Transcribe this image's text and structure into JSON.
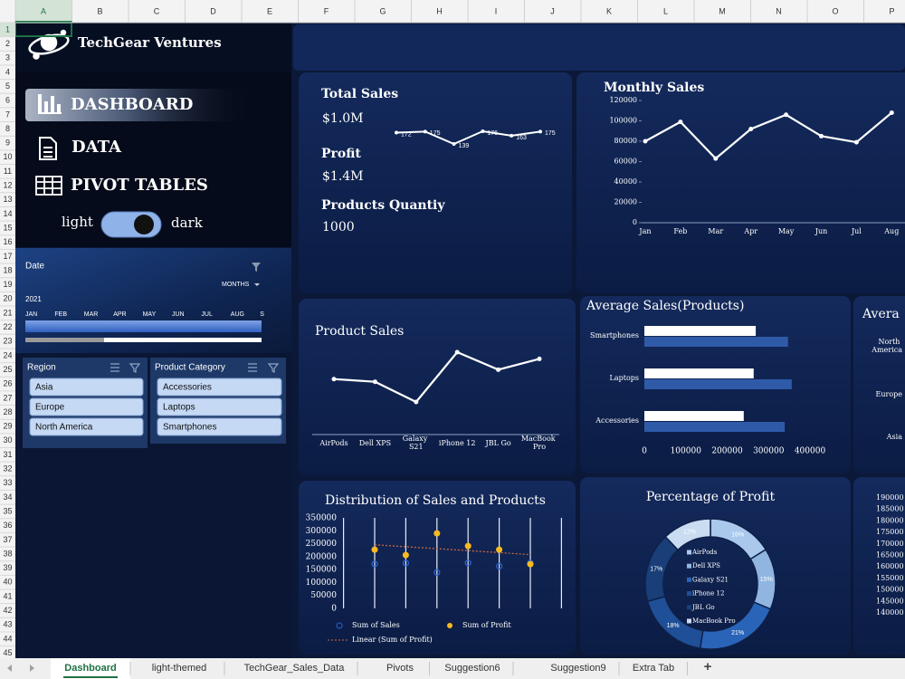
{
  "spreadsheet": {
    "columns": [
      "A",
      "B",
      "C",
      "D",
      "E",
      "F",
      "G",
      "H",
      "I",
      "J",
      "K",
      "L",
      "M",
      "N",
      "O",
      "P"
    ],
    "rows": [
      1,
      2,
      3,
      4,
      5,
      6,
      7,
      8,
      9,
      10,
      11,
      12,
      13,
      14,
      15,
      16,
      17,
      18,
      19,
      20,
      21,
      22,
      23,
      24,
      25,
      26,
      27,
      28,
      29,
      30,
      31,
      32,
      33,
      34,
      35,
      36,
      37,
      38,
      39,
      40,
      41,
      42,
      43,
      44,
      45
    ],
    "tabs": [
      "Dashboard",
      "light-themed",
      "TechGear_Sales_Data",
      "Pivots",
      "Suggestion6",
      "Suggestion9",
      "Extra Tab"
    ],
    "new_tab": "+"
  },
  "sidebar": {
    "company": "TechGear Ventures",
    "nav": [
      "DASHBOARD",
      "DATA",
      "PIVOT TABLES"
    ],
    "toggle": {
      "left": "light",
      "right": "dark"
    }
  },
  "timeline": {
    "title": "Date",
    "level": "MONTHS",
    "year": "2021",
    "months": [
      "JAN",
      "FEB",
      "MAR",
      "APR",
      "MAY",
      "JUN",
      "JUL",
      "AUG",
      "S"
    ]
  },
  "slicers": [
    {
      "title": "Region",
      "items": [
        "Asia",
        "Europe",
        "North America"
      ]
    },
    {
      "title": "Product Category",
      "items": [
        "Accessories",
        "Laptops",
        "Smartphones"
      ]
    }
  ],
  "kpis": [
    {
      "label": "Total Sales",
      "value": "$1.0M"
    },
    {
      "label": "Profit",
      "value": "$1.4M"
    },
    {
      "label": "Products Quantiy",
      "value": "1000"
    }
  ],
  "chart_data": [
    {
      "type": "sparkline",
      "values": [
        172,
        175,
        139,
        176,
        163,
        175
      ],
      "color": "#ffffff",
      "data_labels": true
    },
    {
      "type": "line",
      "title": "Monthly Sales",
      "categories": [
        "Jan",
        "Feb",
        "Mar",
        "Apr",
        "May",
        "Jun",
        "Jul",
        "Aug"
      ],
      "values": [
        80000,
        99000,
        63000,
        92000,
        106000,
        85000,
        79000,
        108000
      ],
      "color": "#ffffff",
      "ylim": [
        0,
        120000
      ],
      "yticks": [
        0,
        20000,
        40000,
        60000,
        80000,
        100000,
        120000
      ]
    },
    {
      "type": "line",
      "title": "Product Sales",
      "categories": [
        "AirPods",
        "Dell XPS",
        "Galaxy S21",
        "iPhone 12",
        "JBL Go",
        "MacBook Pro"
      ],
      "values": [
        156,
        154,
        139,
        176,
        163,
        171
      ],
      "color": "#ffffff"
    },
    {
      "type": "hbar",
      "title": "Average Sales(Products)",
      "categories": [
        "Smartphones",
        "Laptops",
        "Accessories"
      ],
      "series": [
        {
          "color": "#ffffff",
          "values": [
            269000,
            264000,
            240000
          ]
        },
        {
          "color": "#2f5aa8",
          "values": [
            347000,
            356000,
            339000
          ]
        }
      ],
      "xlim": [
        0,
        400000
      ],
      "xticks": [
        0,
        100000,
        200000,
        300000,
        400000
      ]
    },
    {
      "type": "hbar",
      "title": "Avera",
      "categories": [
        "North America",
        "Europe",
        "Asia"
      ]
    },
    {
      "type": "dot",
      "title": "Distribution of Sales and Products",
      "series": [
        {
          "name": "Sum of Sales",
          "color": "#2a62d0",
          "values": [
            172000,
            175000,
            139000,
            176000,
            163000,
            175000
          ]
        },
        {
          "name": "Sum of Profit",
          "color": "#f6b91f",
          "values": [
            227000,
            206000,
            290000,
            241000,
            227000,
            171000
          ],
          "trendline": {
            "name": "Linear (Sum of Profit)",
            "color": "#d2693c"
          }
        }
      ],
      "ylim": [
        0,
        350000
      ],
      "yticks": [
        0,
        50000,
        100000,
        150000,
        200000,
        250000,
        300000,
        350000
      ]
    },
    {
      "type": "pie",
      "title": "Percentage of Profit",
      "donut": true,
      "categories": [
        "AirPods",
        "Dell XPS",
        "Galaxy S21",
        "iPhone 12",
        "JBL Go",
        "MacBook Pro"
      ],
      "values": [
        16,
        15,
        21,
        18,
        17,
        12
      ],
      "value_labels": [
        "16%",
        "15%",
        "21%",
        "18%",
        "17%",
        "12%"
      ],
      "colors": [
        "#a9c8ec",
        "#8fb5e0",
        "#2a64b8",
        "#1f4f96",
        "#193e78",
        "#c9dcf2"
      ]
    },
    {
      "type": "axis",
      "ylim": [
        140000,
        190000
      ],
      "yticks": [
        190000,
        185000,
        180000,
        175000,
        170000,
        165000,
        160000,
        155000,
        150000,
        145000,
        140000
      ]
    }
  ]
}
